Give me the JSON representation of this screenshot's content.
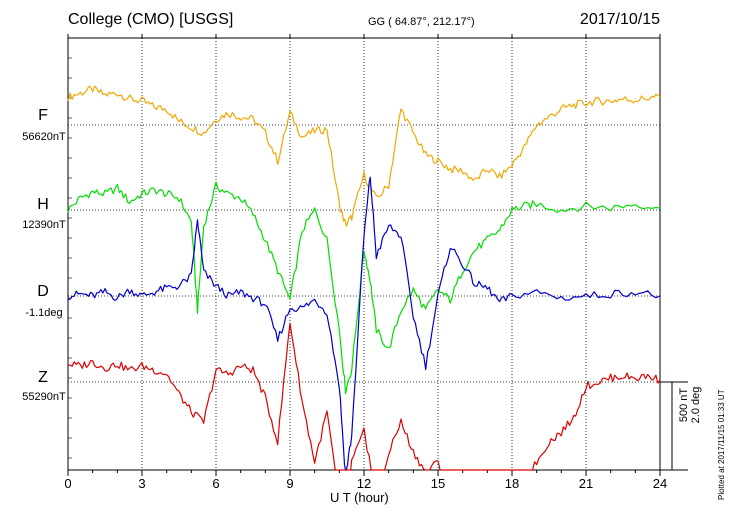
{
  "header": {
    "station": "College (CMO)  [USGS]",
    "coords": "GG ( 64.87°, 212.17°)",
    "date": "2017/10/15"
  },
  "footer": {
    "plotted": "Plotted at 2017/11/15 01:33 UT",
    "scale_nt": "500 nT",
    "scale_deg": "2.0 deg"
  },
  "components": [
    {
      "name": "F",
      "baseline": "56620nT",
      "color": "#f0a800"
    },
    {
      "name": "H",
      "baseline": "12390nT",
      "color": "#00dd00"
    },
    {
      "name": "D",
      "baseline": "-1.1deg",
      "color": "#0000cc"
    },
    {
      "name": "Z",
      "baseline": "55290nT",
      "color": "#dd0000"
    }
  ],
  "chart_data": {
    "type": "line",
    "title": "College (CMO)  [USGS]",
    "xlabel": "U T (hour)",
    "ylabel": "",
    "xlim": [
      0,
      24
    ],
    "x_ticks": [
      0,
      3,
      6,
      9,
      12,
      15,
      18,
      21,
      24
    ],
    "ylim": [
      -900,
      900
    ],
    "grid": true,
    "units": "nT (D in deg)",
    "series": [
      {
        "name": "F",
        "baseline": "56620nT",
        "color": "#f0a800",
        "x": [
          0,
          0.5,
          1,
          1.5,
          2,
          2.5,
          3,
          3.5,
          4,
          4.5,
          5,
          5.5,
          6,
          6.5,
          7,
          7.5,
          8,
          8.5,
          9,
          9.5,
          10,
          10.5,
          11,
          11.25,
          11.5,
          12,
          12.5,
          13,
          13.5,
          14,
          14.5,
          15,
          15.5,
          16,
          16.5,
          17,
          17.5,
          18,
          18.5,
          19,
          19.5,
          20,
          20.5,
          21,
          21.5,
          22,
          22.5,
          23,
          23.5,
          24
        ],
        "y": [
          140,
          160,
          180,
          150,
          160,
          130,
          120,
          90,
          80,
          20,
          -10,
          -40,
          30,
          60,
          40,
          30,
          -40,
          -180,
          60,
          -60,
          -30,
          -20,
          -400,
          -500,
          -460,
          -250,
          -370,
          -300,
          80,
          -40,
          -150,
          -180,
          -220,
          -230,
          -280,
          -220,
          -260,
          -200,
          -110,
          0,
          40,
          80,
          100,
          110,
          120,
          120,
          130,
          125,
          135,
          140
        ]
      },
      {
        "name": "H",
        "baseline": "12390nT",
        "color": "#00dd00",
        "x": [
          0,
          0.5,
          1,
          1.5,
          2,
          2.5,
          3,
          3.5,
          4,
          4.5,
          5,
          5.25,
          5.5,
          6,
          6.5,
          7,
          7.5,
          8,
          8.5,
          9,
          9.5,
          10,
          10.5,
          11,
          11.25,
          11.5,
          12,
          12.25,
          12.5,
          13,
          13.5,
          14,
          14.5,
          15,
          15.5,
          16,
          16.5,
          17,
          17.5,
          18,
          18.5,
          19,
          20,
          21,
          22,
          23,
          24
        ],
        "y": [
          0,
          60,
          90,
          80,
          110,
          40,
          80,
          100,
          80,
          60,
          -60,
          -500,
          -80,
          120,
          80,
          60,
          -20,
          -150,
          -300,
          -450,
          -100,
          0,
          -150,
          -600,
          -900,
          -800,
          -200,
          -350,
          -600,
          -700,
          -500,
          -400,
          -500,
          -400,
          -450,
          -300,
          -200,
          -150,
          -100,
          0,
          20,
          30,
          0,
          20,
          10,
          30,
          10
        ]
      },
      {
        "name": "D",
        "baseline": "-1.1deg",
        "color": "#0000cc",
        "x": [
          0,
          0.5,
          1,
          1.5,
          2,
          2.5,
          3,
          3.5,
          4,
          4.5,
          5,
          5.25,
          5.5,
          6,
          6.5,
          7,
          7.5,
          8,
          8.5,
          9,
          9.5,
          10,
          10.5,
          11,
          11.25,
          11.5,
          12,
          12.25,
          12.5,
          13,
          13.5,
          14,
          14.5,
          15,
          15.5,
          16,
          16.5,
          17,
          17.5,
          18,
          19,
          20,
          21,
          22,
          23,
          24
        ],
        "y": [
          0,
          10,
          0,
          20,
          -10,
          30,
          0,
          20,
          40,
          50,
          100,
          380,
          120,
          50,
          0,
          20,
          -10,
          -40,
          -220,
          -60,
          -60,
          -20,
          -80,
          -450,
          -900,
          -700,
          300,
          600,
          200,
          350,
          300,
          -100,
          -350,
          0,
          250,
          160,
          60,
          40,
          -30,
          0,
          20,
          -10,
          0,
          10,
          20,
          0
        ]
      },
      {
        "name": "Z",
        "baseline": "55290nT",
        "color": "#dd0000",
        "x": [
          0,
          0.5,
          1,
          1.5,
          2,
          2.5,
          3,
          3.5,
          4,
          4.5,
          5,
          5.5,
          6,
          6.5,
          7,
          7.5,
          8,
          8.5,
          9,
          9.5,
          10,
          10.5,
          11,
          11.25,
          11.5,
          12,
          12.25,
          12.5,
          13,
          13.5,
          14,
          14.5,
          15,
          15.5,
          16,
          16.5,
          17,
          17.5,
          18,
          18.5,
          19,
          19.5,
          20,
          20.5,
          21,
          21.5,
          22,
          22.5,
          23,
          23.5,
          24
        ],
        "y": [
          90,
          80,
          100,
          70,
          90,
          60,
          80,
          60,
          40,
          -60,
          -150,
          -200,
          60,
          40,
          80,
          60,
          -80,
          -300,
          300,
          -100,
          -400,
          -150,
          -600,
          -700,
          -400,
          -250,
          -400,
          -700,
          -350,
          -200,
          -350,
          -450,
          -400,
          -550,
          -500,
          -520,
          -600,
          -640,
          -550,
          -500,
          -400,
          -300,
          -250,
          -180,
          -20,
          0,
          20,
          30,
          20,
          30,
          10
        ]
      }
    ]
  }
}
